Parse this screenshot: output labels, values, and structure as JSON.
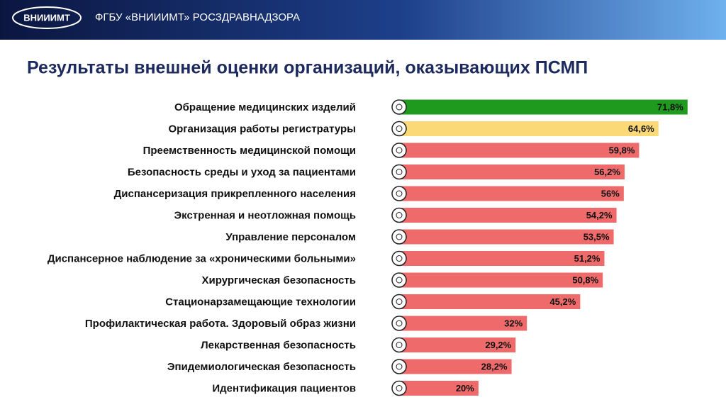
{
  "header": {
    "logo": "ВНИИИМТ",
    "org": "ФГБУ «ВНИИИМТ» РОСЗДРАВНАДЗОРА"
  },
  "chart_data": {
    "type": "bar",
    "orientation": "horizontal",
    "title": "Результаты внешней оценки организаций, оказывающих ПСМП",
    "categories": [
      "Обращение медицинских изделий",
      "Организация работы регистратуры",
      "Преемственность медицинской помощи",
      "Безопасность среды и уход за пациентами",
      "Диспансеризация прикрепленного населения",
      "Экстренная и неотложная помощь",
      "Управление персоналом",
      "Диспансерное наблюдение за «хроническими больными»",
      "Хирургическая безопасность",
      "Стационарзамещающие технологии",
      "Профилактическая работа. Здоровый образ жизни",
      "Лекарственная безопасность",
      "Эпидемиологическая безопасность",
      "Идентификация пациентов"
    ],
    "values": [
      71.8,
      64.6,
      59.8,
      56.2,
      56,
      54.2,
      53.5,
      51.2,
      50.8,
      45.2,
      32,
      29.2,
      28.2,
      20
    ],
    "value_labels": [
      "71,8%",
      "64,6%",
      "59,8%",
      "56,2%",
      "56%",
      "54,2%",
      "53,5%",
      "51,2%",
      "50,8%",
      "45,2%",
      "32%",
      "29,2%",
      "28,2%",
      "20%"
    ],
    "colors": [
      "#1f9a1f",
      "#fcd977",
      "#ef6b6b",
      "#ef6b6b",
      "#ef6b6b",
      "#ef6b6b",
      "#ef6b6b",
      "#ef6b6b",
      "#ef6b6b",
      "#ef6b6b",
      "#ef6b6b",
      "#ef6b6b",
      "#ef6b6b",
      "#ef6b6b"
    ],
    "xlim": [
      0,
      75
    ]
  }
}
